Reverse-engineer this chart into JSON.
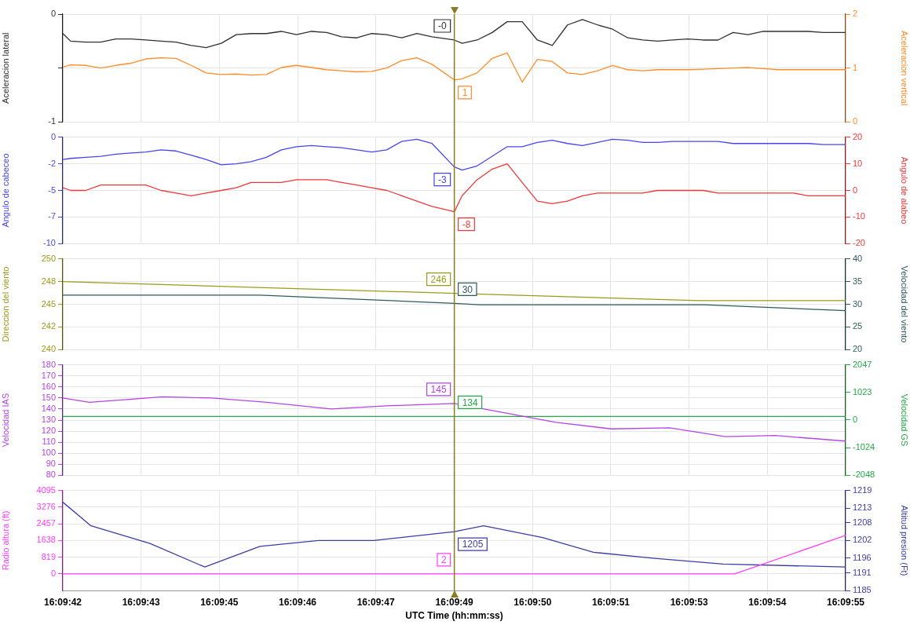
{
  "chart_data": [
    {
      "type": "line",
      "grid": true,
      "legend": false,
      "marker": "none",
      "line_style": "solid",
      "tick_labels": "y",
      "ylabel": "Aceleracion lateral",
      "y2label": "Aceleracion vertical",
      "xlim": [
        16.1617,
        16.165311
      ],
      "xticks": [
        {
          "value": 16.1617,
          "label": null
        },
        {
          "value": 16.162061,
          "label": null
        },
        {
          "value": 16.162422,
          "label": null
        },
        {
          "value": 16.162783,
          "label": null
        },
        {
          "value": 16.163144,
          "label": null
        },
        {
          "value": 16.163506,
          "label": null
        },
        {
          "value": 16.163867,
          "label": null
        },
        {
          "value": 16.164228,
          "label": null
        },
        {
          "value": 16.164589,
          "label": null
        },
        {
          "value": 16.16495,
          "label": null
        },
        {
          "value": 16.165311,
          "label": null
        }
      ],
      "ylim": [
        -1,
        0
      ],
      "yticks": [
        -1,
        {
          "value": -0.5,
          "label": null
        },
        0
      ],
      "y2lim": [
        0,
        2
      ],
      "y2ticks": [
        0,
        1,
        2
      ],
      "ref_lines": [
        {
          "axis": "x",
          "value": 16.163506,
          "color": "#8b7a1e"
        }
      ],
      "x": [
        16.1617,
        16.161736,
        16.161806,
        16.161875,
        16.161944,
        16.162014,
        16.162083,
        16.162153,
        16.162222,
        16.162292,
        16.162361,
        16.162431,
        16.1625,
        16.162569,
        16.162639,
        16.162708,
        16.162778,
        16.162847,
        16.162917,
        16.162986,
        16.163056,
        16.163125,
        16.163194,
        16.163264,
        16.163333,
        16.163403,
        16.163506,
        16.163542,
        16.163611,
        16.163681,
        16.16375,
        16.163819,
        16.163889,
        16.163958,
        16.164028,
        16.164097,
        16.164167,
        16.164236,
        16.164306,
        16.164375,
        16.164444,
        16.164514,
        16.164583,
        16.164653,
        16.164722,
        16.164792,
        16.164861,
        16.164931,
        16.165,
        16.165069,
        16.165139,
        16.165208,
        16.165311
      ],
      "series": [
        {
          "color": "#303030",
          "values": [
            -0.18,
            -0.25,
            -0.26,
            -0.26,
            -0.23,
            -0.23,
            -0.24,
            -0.25,
            -0.26,
            -0.29,
            -0.31,
            -0.27,
            -0.19,
            -0.18,
            -0.18,
            -0.16,
            -0.19,
            -0.16,
            -0.17,
            -0.21,
            -0.22,
            -0.18,
            -0.19,
            -0.22,
            -0.18,
            -0.21,
            -0.24,
            -0.27,
            -0.24,
            -0.17,
            -0.07,
            -0.07,
            -0.24,
            -0.29,
            -0.1,
            -0.05,
            -0.1,
            -0.14,
            -0.22,
            -0.24,
            -0.25,
            -0.24,
            -0.23,
            -0.24,
            -0.24,
            -0.17,
            -0.19,
            -0.16,
            -0.16,
            -0.16,
            -0.16,
            -0.17,
            -0.17
          ],
          "value_labels": [
            null,
            null,
            null,
            null,
            null,
            null,
            null,
            null,
            null,
            null,
            null,
            null,
            null,
            null,
            null,
            null,
            null,
            null,
            null,
            null,
            null,
            null,
            null,
            null,
            null,
            null,
            "-0",
            null,
            null,
            null,
            null,
            null,
            null,
            null,
            null,
            null,
            null,
            null,
            null,
            null,
            null,
            null,
            null,
            null,
            null,
            null,
            null,
            null,
            null,
            null,
            null,
            null,
            null
          ]
        },
        {
          "color": "#ff8c28",
          "axis": "y2",
          "values": [
            1.02,
            1.06,
            1.05,
            1.0,
            1.05,
            1.09,
            1.17,
            1.19,
            1.18,
            1.05,
            0.91,
            0.88,
            0.89,
            0.87,
            0.88,
            1.01,
            1.05,
            1.01,
            0.97,
            0.95,
            0.93,
            0.94,
            1.0,
            1.14,
            1.19,
            1.07,
            0.78,
            0.8,
            0.91,
            1.18,
            1.28,
            0.74,
            1.16,
            1.12,
            0.91,
            0.88,
            0.95,
            1.05,
            0.97,
            0.95,
            0.97,
            0.97,
            0.97,
            0.98,
            0.99,
            1.0,
            1.01,
            0.99,
            0.97,
            0.97,
            0.97,
            0.97,
            0.97
          ],
          "value_labels": [
            null,
            null,
            null,
            null,
            null,
            null,
            null,
            null,
            null,
            null,
            null,
            null,
            null,
            null,
            null,
            null,
            null,
            null,
            null,
            null,
            null,
            null,
            null,
            null,
            null,
            null,
            "1",
            null,
            null,
            null,
            null,
            null,
            null,
            null,
            null,
            null,
            null,
            null,
            null,
            null,
            null,
            null,
            null,
            null,
            null,
            null,
            null,
            null,
            null,
            null,
            null,
            null,
            null
          ]
        }
      ]
    },
    {
      "type": "line",
      "grid": true,
      "legend": false,
      "marker": "none",
      "line_style": "solid",
      "tick_labels": "y",
      "ylabel": "Angulo de cabeceo",
      "y2label": "Angulo de alabeo",
      "xlim": [
        16.1617,
        16.165311
      ],
      "xticks": [
        {
          "value": 16.1617,
          "label": null
        },
        {
          "value": 16.162061,
          "label": null
        },
        {
          "value": 16.162422,
          "label": null
        },
        {
          "value": 16.162783,
          "label": null
        },
        {
          "value": 16.163144,
          "label": null
        },
        {
          "value": 16.163506,
          "label": null
        },
        {
          "value": 16.163867,
          "label": null
        },
        {
          "value": 16.164228,
          "label": null
        },
        {
          "value": 16.164589,
          "label": null
        },
        {
          "value": 16.16495,
          "label": null
        },
        {
          "value": 16.165311,
          "label": null
        }
      ],
      "ylim": [
        -10,
        0
      ],
      "yticks": [
        -10,
        {
          "value": -7.5,
          "label": "-7"
        },
        -5,
        {
          "value": -2.5,
          "label": "-2"
        },
        0
      ],
      "y2lim": [
        -20,
        20
      ],
      "y2ticks": [
        -20,
        -10,
        0,
        10,
        20
      ],
      "ref_lines": [
        {
          "axis": "x",
          "value": 16.163506,
          "color": "#8b7a1e"
        }
      ],
      "x": [
        16.1617,
        16.161736,
        16.161806,
        16.161875,
        16.161944,
        16.162014,
        16.162083,
        16.162153,
        16.162222,
        16.162292,
        16.162361,
        16.162431,
        16.1625,
        16.162569,
        16.162639,
        16.162708,
        16.162778,
        16.162847,
        16.162917,
        16.162986,
        16.163056,
        16.163125,
        16.163194,
        16.163264,
        16.163333,
        16.163403,
        16.163506,
        16.163542,
        16.163611,
        16.163681,
        16.16375,
        16.163819,
        16.163889,
        16.163958,
        16.164028,
        16.164097,
        16.164167,
        16.164236,
        16.164306,
        16.164375,
        16.164444,
        16.164514,
        16.164583,
        16.164653,
        16.164722,
        16.164792,
        16.164861,
        16.164931,
        16.165,
        16.165069,
        16.165139,
        16.165208,
        16.165311
      ],
      "series": [
        {
          "color": "#4646f0",
          "values": [
            -2.1,
            -2.0,
            -1.9,
            -1.8,
            -1.6,
            -1.5,
            -1.4,
            -1.2,
            -1.3,
            -1.7,
            -2.1,
            -2.6,
            -2.5,
            -2.3,
            -1.9,
            -1.2,
            -0.9,
            -0.8,
            -0.9,
            -1.0,
            -1.2,
            -1.4,
            -1.2,
            -0.4,
            -0.2,
            -0.6,
            -2.8,
            -3.1,
            -2.7,
            -1.8,
            -0.9,
            -0.9,
            -0.5,
            -0.3,
            -0.6,
            -0.8,
            -0.5,
            -0.2,
            -0.3,
            -0.5,
            -0.5,
            -0.4,
            -0.4,
            -0.4,
            -0.4,
            -0.6,
            -0.6,
            -0.6,
            -0.6,
            -0.6,
            -0.6,
            -0.7,
            -0.7
          ],
          "value_labels": [
            null,
            null,
            null,
            null,
            null,
            null,
            null,
            null,
            null,
            null,
            null,
            null,
            null,
            null,
            null,
            null,
            null,
            null,
            null,
            null,
            null,
            null,
            null,
            null,
            null,
            null,
            "-3",
            null,
            null,
            null,
            null,
            null,
            null,
            null,
            null,
            null,
            null,
            null,
            null,
            null,
            null,
            null,
            null,
            null,
            null,
            null,
            null,
            null,
            null,
            null,
            null,
            null,
            null
          ]
        },
        {
          "color": "#f03737",
          "axis": "y2",
          "values": [
            1,
            0,
            0,
            2,
            2,
            2,
            2,
            0,
            -1,
            -2,
            -1,
            0,
            1,
            3,
            3,
            3,
            4,
            4,
            4,
            3,
            2,
            1,
            0,
            -2,
            -4,
            -6,
            -8,
            -2,
            4,
            8,
            10,
            3,
            -4,
            -5,
            -4,
            -2,
            -1,
            -1,
            -1,
            -1,
            0,
            0,
            0,
            0,
            -1,
            -1,
            -1,
            -1,
            -1,
            -1,
            -2,
            -2,
            -2
          ],
          "value_labels": [
            null,
            null,
            null,
            null,
            null,
            null,
            null,
            null,
            null,
            null,
            null,
            null,
            null,
            null,
            null,
            null,
            null,
            null,
            null,
            null,
            null,
            null,
            null,
            null,
            null,
            null,
            "-8",
            null,
            null,
            null,
            null,
            null,
            null,
            null,
            null,
            null,
            null,
            null,
            null,
            null,
            null,
            null,
            null,
            null,
            null,
            null,
            null,
            null,
            null,
            null,
            null,
            null,
            null
          ]
        }
      ]
    },
    {
      "type": "line",
      "grid": true,
      "legend": false,
      "marker": "none",
      "line_style": "solid",
      "tick_labels": "y",
      "ylabel": "Direccion del viento",
      "y2label": "Velocidad del viento",
      "xlim": [
        16.1617,
        16.165311
      ],
      "xticks": [
        {
          "value": 16.1617,
          "label": null
        },
        {
          "value": 16.162061,
          "label": null
        },
        {
          "value": 16.162422,
          "label": null
        },
        {
          "value": 16.162783,
          "label": null
        },
        {
          "value": 16.163144,
          "label": null
        },
        {
          "value": 16.163506,
          "label": null
        },
        {
          "value": 16.163867,
          "label": null
        },
        {
          "value": 16.164228,
          "label": null
        },
        {
          "value": 16.164589,
          "label": null
        },
        {
          "value": 16.16495,
          "label": null
        },
        {
          "value": 16.165311,
          "label": null
        }
      ],
      "ylim": [
        240,
        250
      ],
      "yticks": [
        240,
        {
          "value": 242.5,
          "label": "242"
        },
        245,
        {
          "value": 247.5,
          "label": "248"
        },
        250
      ],
      "y2lim": [
        20,
        40
      ],
      "y2ticks": [
        20,
        25,
        30,
        35,
        40
      ],
      "ref_lines": [
        {
          "axis": "x",
          "value": 16.163506,
          "color": "#8b7a1e"
        }
      ],
      "series": [
        {
          "color": "#9b9b1a",
          "x": [
            16.1617,
            16.163506,
            16.164636,
            16.165311
          ],
          "values": [
            247.5,
            246.2,
            245.4,
            245.4
          ],
          "value_labels": [
            null,
            "246",
            null,
            null
          ]
        },
        {
          "color": "#2e5a5a",
          "axis": "y2",
          "x": [
            16.1617,
            16.162608,
            16.163506,
            16.163622,
            16.164656,
            16.165311
          ],
          "values": [
            32,
            32,
            30.2,
            29.9,
            29.9,
            28.6
          ],
          "value_labels": [
            null,
            null,
            "30",
            null,
            null,
            null
          ]
        }
      ]
    },
    {
      "type": "line",
      "grid": true,
      "legend": false,
      "marker": "none",
      "line_style": "solid",
      "tick_labels": "y",
      "ylabel": "Velocidad IAS",
      "y2label": "Velocidad GS",
      "xlim": [
        16.1617,
        16.165311
      ],
      "xticks": [
        {
          "value": 16.1617,
          "label": null
        },
        {
          "value": 16.162061,
          "label": null
        },
        {
          "value": 16.162422,
          "label": null
        },
        {
          "value": 16.162783,
          "label": null
        },
        {
          "value": 16.163144,
          "label": null
        },
        {
          "value": 16.163506,
          "label": null
        },
        {
          "value": 16.163867,
          "label": null
        },
        {
          "value": 16.164228,
          "label": null
        },
        {
          "value": 16.164589,
          "label": null
        },
        {
          "value": 16.16495,
          "label": null
        },
        {
          "value": 16.165311,
          "label": null
        }
      ],
      "ylim": [
        80,
        180
      ],
      "yticks": [
        80,
        90,
        100,
        110,
        120,
        130,
        140,
        150,
        160,
        170,
        180
      ],
      "y2lim": [
        -2048,
        2047
      ],
      "y2ticks": [
        -2048,
        -1024,
        0,
        1023,
        2047
      ],
      "ref_lines": [
        {
          "axis": "x",
          "value": 16.163506,
          "color": "#8b7a1e"
        }
      ],
      "series": [
        {
          "color": "#b444e6",
          "x": [
            16.1617,
            16.161823,
            16.16216,
            16.162388,
            16.162641,
            16.162938,
            16.16321,
            16.163506,
            16.163974,
            16.164231,
            16.164499,
            16.164757,
            16.164985,
            16.165311
          ],
          "values": [
            150,
            146,
            151,
            150,
            146,
            140,
            143,
            145,
            128,
            122,
            123,
            115,
            116,
            111
          ],
          "value_labels": [
            null,
            null,
            null,
            null,
            null,
            null,
            null,
            "145",
            null,
            null,
            null,
            null,
            null,
            null
          ]
        },
        {
          "color": "#22aa44",
          "axis": "y2",
          "x": [
            16.1617,
            16.163506,
            16.165311
          ],
          "values": [
            134,
            134,
            134
          ],
          "value_labels": [
            null,
            "134",
            null
          ]
        }
      ]
    },
    {
      "type": "line",
      "grid": true,
      "legend": false,
      "marker": "none",
      "line_style": "solid",
      "ylabel": "Radio altura (ft)",
      "y2label": "Altitud presion (Ft)",
      "xlabel": "UTC Time (hh:mm:ss)",
      "xlim": [
        16.1617,
        16.165311
      ],
      "xticks": [
        {
          "value": 16.1617,
          "label": "16:09:42"
        },
        {
          "value": 16.162061,
          "label": "16:09:43"
        },
        {
          "value": 16.162422,
          "label": "16:09:45"
        },
        {
          "value": 16.162783,
          "label": "16:09:46"
        },
        {
          "value": 16.163144,
          "label": "16:09:47"
        },
        {
          "value": 16.163506,
          "label": "16:09:49"
        },
        {
          "value": 16.163867,
          "label": "16:09:50"
        },
        {
          "value": 16.164228,
          "label": "16:09:51"
        },
        {
          "value": 16.164589,
          "label": "16:09:53"
        },
        {
          "value": 16.16495,
          "label": "16:09:54"
        },
        {
          "value": 16.165311,
          "label": "16:09:55"
        }
      ],
      "ylim": [
        -819,
        4095
      ],
      "yticks": [
        0,
        819,
        1638,
        2457,
        3276,
        4095
      ],
      "y2lim": [
        1185,
        1219
      ],
      "y2ticks": [
        1185,
        1191,
        1196,
        1202,
        1208,
        1213,
        1219
      ],
      "ref_lines": [
        {
          "axis": "x",
          "value": 16.163506,
          "color": "#8b7a1e"
        }
      ],
      "series": [
        {
          "color": "#ff3cff",
          "x": [
            16.1617,
            16.163506,
            16.1648,
            16.165311
          ],
          "values": [
            2,
            2,
            2,
            1890
          ],
          "value_labels": [
            null,
            "2",
            null,
            null
          ]
        },
        {
          "color": "#3c3ca8",
          "axis": "y2",
          "x": [
            16.1617,
            16.16183,
            16.162102,
            16.162355,
            16.162609,
            16.16288,
            16.163134,
            16.163506,
            16.163641,
            16.163913,
            16.164148,
            16.16442,
            16.164746,
            16.165311
          ],
          "values": [
            1215,
            1207,
            1201,
            1193,
            1200,
            1202,
            1202,
            1205,
            1207,
            1203,
            1198,
            1196,
            1194,
            1193
          ],
          "value_labels": [
            null,
            null,
            null,
            null,
            null,
            null,
            null,
            "1205",
            null,
            null,
            null,
            null,
            null,
            null
          ]
        }
      ]
    }
  ]
}
